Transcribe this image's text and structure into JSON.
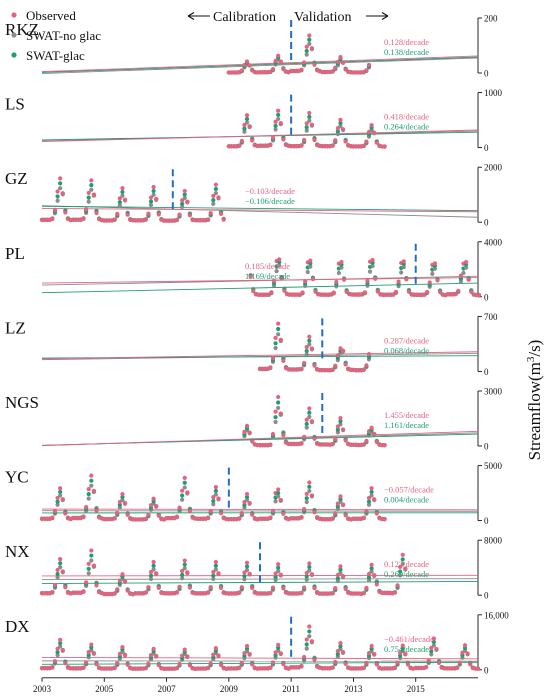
{
  "chart_data": {
    "type": "scatter",
    "title": "",
    "xlabel": "",
    "ylabel": "Streamflow(m³/s)",
    "ylabel_parts": {
      "main": "Streamflow(m",
      "sup": "3",
      "tail": "/s)"
    },
    "header": {
      "calibration": "Calibration",
      "validation": "Validation"
    },
    "x_range": [
      2003,
      2017
    ],
    "x_ticks": [
      2003,
      2005,
      2007,
      2009,
      2011,
      2013,
      2015
    ],
    "x_tick_labels": [
      "2003",
      "2005",
      "2007",
      "2009",
      "2011",
      "2013",
      "2015"
    ],
    "legend_position": "top-left",
    "grid": false,
    "series": [
      {
        "name": "Observed",
        "color": "#e8627f"
      },
      {
        "name": "SWAT-no glac",
        "color": "#8c8c8c"
      },
      {
        "name": "SWAT-glac",
        "color": "#1e9e72"
      }
    ],
    "divider_color": "#1f6fc4",
    "panels": [
      {
        "station": "RKZ",
        "ymax": 200,
        "ytick_labels": [
          "200",
          "0"
        ],
        "start": 2009.0,
        "end": 2013.5,
        "divider": 2011.0,
        "peaks": [
          35,
          40,
          55,
          60,
          150,
          130,
          75,
          55,
          40
        ],
        "trend_obs_label": "0.128/decade",
        "trend_glac_label": "0.138/decade",
        "trends": {
          "obs": [
            5,
            62
          ],
          "noglac": [
            -2,
            55
          ],
          "glac": [
            2,
            58
          ]
        }
      },
      {
        "station": "LS",
        "ymax": 1000,
        "ytick_labels": [
          "1000",
          "0"
        ],
        "start": 2009.0,
        "end": 2014.0,
        "divider": 2011.0,
        "peaks": [
          470,
          560,
          700,
          640,
          540,
          600,
          520,
          480,
          430,
          390
        ],
        "trend_obs_label": "0.418/decade",
        "trend_glac_label": "0.264/decade",
        "trends": {
          "obs": [
            110,
            320
          ],
          "noglac": [
            120,
            300
          ],
          "glac": [
            140,
            280
          ]
        }
      },
      {
        "station": "GZ",
        "ymax": 2000,
        "ytick_labels": [
          "2000",
          "0"
        ],
        "start": 2003.0,
        "end": 2008.8,
        "divider": 2007.2,
        "peaks": [
          1750,
          1520,
          1820,
          1450,
          1280,
          1180,
          1380,
          1220,
          1150,
          1080,
          1420,
          1300
        ],
        "trend_obs_label": "−0.103/decade",
        "trend_glac_label": "−0.106/decade",
        "trends": {
          "obs": [
            500,
            380
          ],
          "noglac": [
            600,
            180
          ],
          "glac": [
            580,
            420
          ]
        }
      },
      {
        "station": "PL",
        "ymax": 4000,
        "ytick_labels": [
          "4000",
          "0"
        ],
        "start": 2009.7,
        "end": 2017.0,
        "divider": 2015.0,
        "peaks": [
          3050,
          2800,
          3200,
          2700,
          3100,
          2600,
          3300,
          2750,
          3050,
          2650,
          2950,
          2500,
          3700,
          2600
        ],
        "trend_obs_label": "0.185/decade",
        "trend_glac_label": "1.169/decade",
        "trends": {
          "obs": [
            1000,
            1400
          ],
          "noglac": [
            850,
            1500
          ],
          "glac": [
            300,
            1000
          ]
        }
      },
      {
        "station": "LZ",
        "ymax": 700,
        "ytick_labels": [
          "700",
          "0"
        ],
        "start": 2010.0,
        "end": 2013.5,
        "divider": 2012.0,
        "peaks": [
          650,
          580,
          500,
          420,
          320,
          280,
          380,
          300
        ],
        "trend_obs_label": "0.287/decade",
        "trend_glac_label": "0.068/decade",
        "trends": {
          "obs": [
            160,
            250
          ],
          "noglac": [
            150,
            230
          ],
          "glac": [
            170,
            200
          ]
        }
      },
      {
        "station": "NGS",
        "ymax": 3000,
        "ytick_labels": [
          "3000",
          "0"
        ],
        "start": 2009.5,
        "end": 2014.0,
        "divider": 2012.0,
        "peaks": [
          1050,
          920,
          2550,
          2200,
          1950,
          1700,
          1450,
          1300,
          1100,
          950
        ],
        "trend_obs_label": "1.455/decade",
        "trend_glac_label": "1.161/decade",
        "trends": {
          "obs": [
            20,
            800
          ],
          "noglac": [
            30,
            720
          ],
          "glac": [
            40,
            650
          ]
        }
      },
      {
        "station": "YC",
        "ymax": 5000,
        "ytick_labels": [
          "5000",
          "0"
        ],
        "start": 2003.0,
        "end": 2014.0,
        "divider": 2009.0,
        "peaks": [
          3400,
          2800,
          4800,
          3900,
          2800,
          2300,
          2100,
          1900,
          4600,
          3700,
          3400,
          2900,
          2600,
          2300,
          3400,
          2700,
          4100,
          3300,
          2500,
          2100,
          3400,
          2800
        ],
        "trend_obs_label": "−0.057/decade",
        "trend_glac_label": "0.004/decade",
        "trends": {
          "obs": [
            1050,
            980
          ],
          "noglac": [
            900,
            850
          ],
          "glac": [
            700,
            710
          ]
        }
      },
      {
        "station": "NX",
        "ymax": 8000,
        "ytick_labels": [
          "8000",
          "0"
        ],
        "start": 2003.0,
        "end": 2014.7,
        "divider": 2010.0,
        "peaks": [
          5800,
          5000,
          7300,
          6200,
          3400,
          2900,
          5300,
          4600,
          5600,
          4800,
          5400,
          4600,
          5200,
          4500,
          5000,
          4300,
          5100,
          4400,
          4700,
          4000,
          4900,
          4200,
          6800,
          5600
        ],
        "trend_obs_label": "0.122/decade",
        "trend_glac_label": "0.269/decade",
        "trends": {
          "obs": [
            2800,
            2900
          ],
          "noglac": [
            2300,
            2400
          ],
          "glac": [
            1700,
            2000
          ]
        }
      },
      {
        "station": "DX",
        "ymax": 16000,
        "ytick_labels": [
          "16,000",
          "0"
        ],
        "start": 2003.0,
        "end": 2017.0,
        "divider": 2011.0,
        "peaks": [
          9800,
          8300,
          8500,
          7000,
          7600,
          6300,
          7000,
          5800,
          6700,
          5600,
          7200,
          6000,
          7900,
          6600,
          8300,
          6900,
          14600,
          12000,
          8900,
          7400,
          7900,
          6600,
          8000,
          6700,
          10600,
          8700,
          8200,
          6800
        ],
        "trend_obs_label": "−0.461/decade",
        "trend_glac_label": "0.754/decade",
        "trends": {
          "obs": [
            3600,
            3200
          ],
          "noglac": [
            2600,
            2500
          ],
          "glac": [
            1600,
            2200
          ]
        }
      }
    ]
  }
}
